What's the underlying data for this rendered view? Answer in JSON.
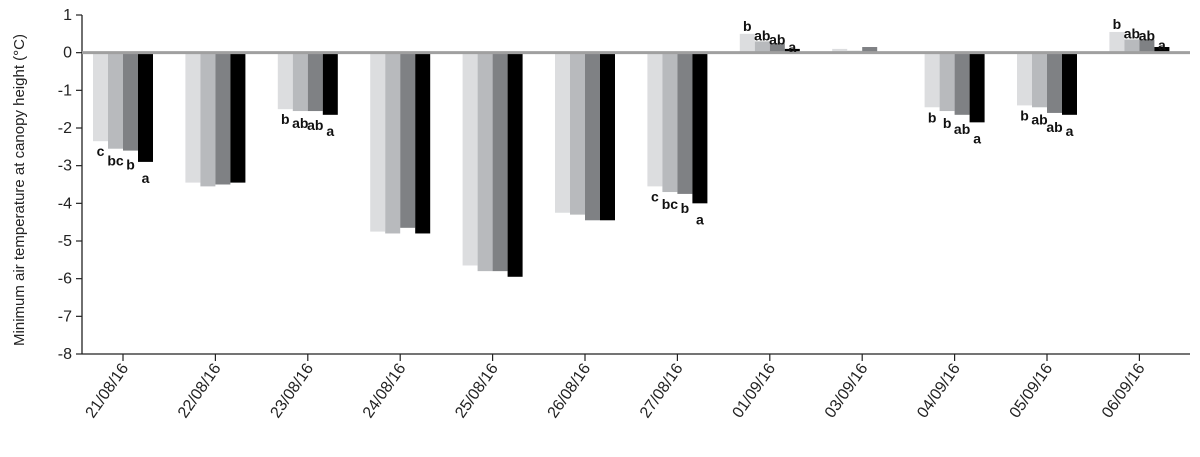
{
  "chart_data": {
    "type": "bar",
    "title": "",
    "xlabel": "",
    "ylabel": "Minimum air temperature at canopy height (°C)",
    "ylim": [
      -8,
      1
    ],
    "yticks": [
      1,
      0,
      -1,
      -2,
      -3,
      -4,
      -5,
      -6,
      -7,
      -8
    ],
    "ytick_labels": [
      "1",
      "0",
      "-1",
      "-2",
      "-3",
      "-4",
      "-5",
      "-6",
      "-7",
      "-8"
    ],
    "grid": false,
    "legend": "none",
    "categories": [
      "21/08/16",
      "22/08/16",
      "23/08/16",
      "24/08/16",
      "25/08/16",
      "26/08/16",
      "27/08/16",
      "01/09/16",
      "03/09/16",
      "04/09/16",
      "05/09/16",
      "06/09/16"
    ],
    "series": [
      {
        "color": "#dcdddf",
        "values": [
          -2.35,
          -3.45,
          -1.5,
          -4.75,
          -5.65,
          -4.25,
          -3.55,
          0.5,
          0.1,
          -1.45,
          -1.4,
          0.55
        ]
      },
      {
        "color": "#b8babd",
        "values": [
          -2.55,
          -3.55,
          -1.55,
          -4.8,
          -5.8,
          -4.3,
          -3.7,
          0.3,
          0.05,
          -1.55,
          -1.45,
          0.35
        ]
      },
      {
        "color": "#7f8184",
        "values": [
          -2.6,
          -3.5,
          -1.55,
          -4.65,
          -5.8,
          -4.45,
          -3.75,
          0.25,
          0.15,
          -1.65,
          -1.6,
          0.35
        ]
      },
      {
        "color": "#000000",
        "values": [
          -2.9,
          -3.45,
          -1.65,
          -4.8,
          -5.95,
          -4.45,
          -4.0,
          0.1,
          0.0,
          -1.85,
          -1.65,
          0.15
        ]
      }
    ],
    "annotations": [
      {
        "category": 0,
        "labels": [
          "c",
          "bc",
          "b",
          "a"
        ]
      },
      {
        "category": 2,
        "labels": [
          "b",
          "ab",
          "ab",
          "a"
        ]
      },
      {
        "category": 6,
        "labels": [
          "c",
          "bc",
          "b",
          "a"
        ]
      },
      {
        "category": 7,
        "labels": [
          "b",
          "ab",
          "ab",
          "a"
        ]
      },
      {
        "category": 9,
        "labels": [
          "b",
          "b",
          "ab",
          "a"
        ]
      },
      {
        "category": 10,
        "labels": [
          "b",
          "ab",
          "ab",
          "a"
        ]
      },
      {
        "category": 11,
        "labels": [
          "b",
          "ab",
          "ab",
          "a"
        ]
      }
    ]
  }
}
